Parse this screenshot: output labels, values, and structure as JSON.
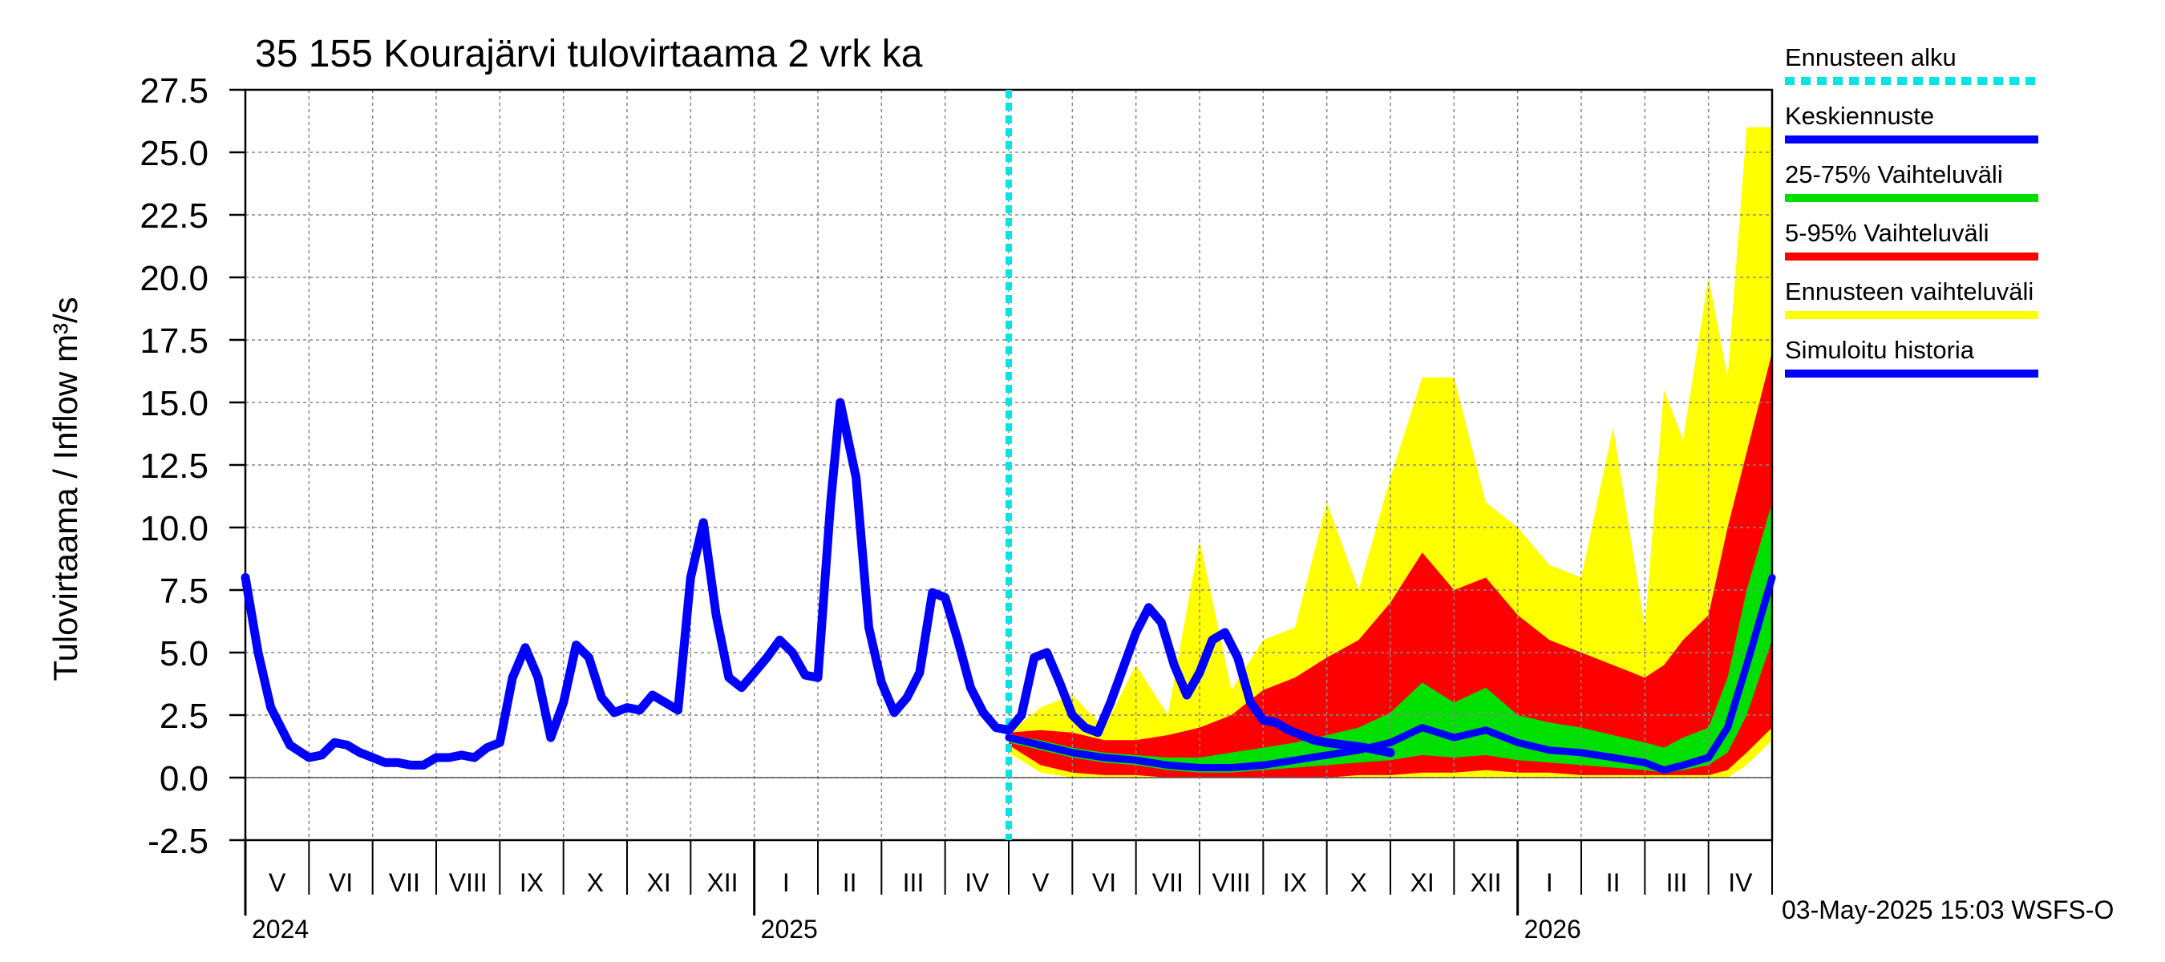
{
  "chart_data": {
    "type": "area",
    "title": "35 155 Kourajärvi tulovirtaama 2 vrk ka",
    "ylabel": "Tulovirtaama / Inflow    m³/s",
    "ylim": [
      -2.5,
      27.5
    ],
    "yticks": [
      "-2.5",
      "0.0",
      "2.5",
      "5.0",
      "7.5",
      "10.0",
      "12.5",
      "15.0",
      "17.5",
      "20.0",
      "22.5",
      "25.0",
      "27.5"
    ],
    "grid": true,
    "legend_position": "right",
    "x_months": [
      "V",
      "VI",
      "VII",
      "VIII",
      "IX",
      "X",
      "XI",
      "XII",
      "I",
      "II",
      "III",
      "IV",
      "V",
      "VI",
      "VII",
      "VIII",
      "IX",
      "X",
      "XI",
      "XII",
      "I",
      "II",
      "III",
      "IV"
    ],
    "x_years": [
      {
        "label": "2024",
        "month_index": 0
      },
      {
        "label": "2025",
        "month_index": 8
      },
      {
        "label": "2026",
        "month_index": 20
      }
    ],
    "forecast_start_month": 12,
    "legend": [
      {
        "label": "Ennusteen alku",
        "color": "#00e5e5",
        "style": "dotted"
      },
      {
        "label": "Keskiennuste",
        "color": "#0000ff",
        "style": "solid"
      },
      {
        "label": "25-75% Vaihteluväli",
        "color": "#00e000",
        "style": "solid"
      },
      {
        "label": "5-95% Vaihteluväli",
        "color": "#ff0000",
        "style": "solid"
      },
      {
        "label": "Ennusteen vaihteluväli",
        "color": "#ffff00",
        "style": "solid"
      },
      {
        "label": "Simuloitu historia",
        "color": "#0000ff",
        "style": "solid"
      }
    ],
    "history": {
      "name": "Simuloitu historia",
      "color": "#0000ff",
      "points": [
        [
          0.0,
          8.0
        ],
        [
          0.2,
          5.0
        ],
        [
          0.4,
          2.8
        ],
        [
          0.7,
          1.3
        ],
        [
          1.0,
          0.8
        ],
        [
          1.2,
          0.9
        ],
        [
          1.4,
          1.4
        ],
        [
          1.6,
          1.3
        ],
        [
          1.8,
          1.0
        ],
        [
          2.0,
          0.8
        ],
        [
          2.2,
          0.6
        ],
        [
          2.4,
          0.6
        ],
        [
          2.6,
          0.5
        ],
        [
          2.8,
          0.5
        ],
        [
          3.0,
          0.8
        ],
        [
          3.2,
          0.8
        ],
        [
          3.4,
          0.9
        ],
        [
          3.6,
          0.8
        ],
        [
          3.8,
          1.2
        ],
        [
          4.0,
          1.4
        ],
        [
          4.2,
          4.0
        ],
        [
          4.4,
          5.2
        ],
        [
          4.6,
          4.0
        ],
        [
          4.8,
          1.6
        ],
        [
          5.0,
          3.0
        ],
        [
          5.2,
          5.3
        ],
        [
          5.4,
          4.8
        ],
        [
          5.6,
          3.2
        ],
        [
          5.8,
          2.6
        ],
        [
          6.0,
          2.8
        ],
        [
          6.2,
          2.7
        ],
        [
          6.4,
          3.3
        ],
        [
          6.6,
          3.0
        ],
        [
          6.8,
          2.7
        ],
        [
          7.0,
          8.0
        ],
        [
          7.2,
          10.2
        ],
        [
          7.4,
          6.5
        ],
        [
          7.6,
          4.0
        ],
        [
          7.8,
          3.6
        ],
        [
          8.0,
          4.2
        ],
        [
          8.2,
          4.8
        ],
        [
          8.4,
          5.5
        ],
        [
          8.6,
          5.0
        ],
        [
          8.8,
          4.1
        ],
        [
          9.0,
          4.0
        ],
        [
          9.2,
          11.0
        ],
        [
          9.35,
          15.0
        ],
        [
          9.6,
          12.0
        ],
        [
          9.8,
          6.0
        ],
        [
          10.0,
          3.8
        ],
        [
          10.2,
          2.6
        ],
        [
          10.4,
          3.2
        ],
        [
          10.6,
          4.2
        ],
        [
          10.8,
          7.4
        ],
        [
          11.0,
          7.2
        ],
        [
          11.2,
          5.5
        ],
        [
          11.4,
          3.6
        ],
        [
          11.6,
          2.6
        ],
        [
          11.8,
          2.0
        ],
        [
          12.0,
          1.9
        ],
        [
          12.2,
          2.5
        ],
        [
          12.4,
          4.8
        ],
        [
          12.6,
          5.0
        ],
        [
          12.8,
          3.8
        ],
        [
          13.0,
          2.5
        ],
        [
          13.2,
          2.0
        ],
        [
          13.4,
          1.8
        ],
        [
          13.6,
          3.0
        ],
        [
          13.8,
          4.4
        ],
        [
          14.0,
          5.8
        ],
        [
          14.2,
          6.8
        ],
        [
          14.4,
          6.2
        ],
        [
          14.6,
          4.5
        ],
        [
          14.8,
          3.3
        ],
        [
          15.0,
          4.2
        ],
        [
          15.2,
          5.5
        ],
        [
          15.4,
          5.8
        ],
        [
          15.6,
          4.8
        ],
        [
          15.8,
          3.0
        ],
        [
          16.0,
          2.3
        ],
        [
          16.2,
          2.2
        ],
        [
          16.4,
          1.9
        ],
        [
          16.6,
          1.7
        ],
        [
          16.8,
          1.5
        ],
        [
          17.0,
          1.4
        ],
        [
          17.3,
          1.3
        ],
        [
          17.6,
          1.2
        ],
        [
          18.0,
          1.0
        ]
      ]
    },
    "forecast": {
      "x": [
        12.0,
        12.5,
        13.0,
        13.5,
        14.0,
        14.5,
        15.0,
        15.5,
        16.0,
        16.5,
        17.0,
        17.5,
        18.0,
        18.5,
        19.0,
        19.5,
        20.0,
        20.5,
        21.0,
        21.5,
        22.0,
        22.3,
        22.6,
        23.0,
        23.3,
        23.6,
        24.0
      ],
      "median": [
        1.6,
        1.3,
        1.0,
        0.8,
        0.7,
        0.5,
        0.4,
        0.4,
        0.5,
        0.7,
        0.9,
        1.1,
        1.4,
        2.0,
        1.6,
        1.9,
        1.4,
        1.1,
        1.0,
        0.8,
        0.6,
        0.3,
        0.5,
        0.8,
        2.0,
        4.5,
        8.0
      ],
      "p25": [
        1.4,
        1.1,
        0.8,
        0.6,
        0.5,
        0.3,
        0.2,
        0.2,
        0.3,
        0.4,
        0.5,
        0.6,
        0.7,
        0.9,
        0.8,
        0.9,
        0.7,
        0.6,
        0.5,
        0.4,
        0.3,
        0.2,
        0.3,
        0.5,
        1.0,
        2.5,
        5.5
      ],
      "p75": [
        1.7,
        1.5,
        1.2,
        1.0,
        0.9,
        0.8,
        0.8,
        1.0,
        1.2,
        1.4,
        1.7,
        2.0,
        2.6,
        3.8,
        3.0,
        3.6,
        2.5,
        2.2,
        2.0,
        1.7,
        1.4,
        1.2,
        1.6,
        2.0,
        4.0,
        7.5,
        11.0
      ],
      "p5": [
        1.3,
        0.5,
        0.2,
        0.1,
        0.1,
        0.0,
        0.0,
        0.0,
        0.0,
        0.0,
        0.0,
        0.1,
        0.1,
        0.2,
        0.2,
        0.3,
        0.2,
        0.2,
        0.1,
        0.1,
        0.1,
        0.1,
        0.1,
        0.1,
        0.3,
        1.0,
        2.0
      ],
      "p95": [
        1.8,
        1.9,
        1.8,
        1.5,
        1.5,
        1.7,
        2.0,
        2.5,
        3.5,
        4.0,
        4.8,
        5.5,
        7.0,
        9.0,
        7.5,
        8.0,
        6.5,
        5.5,
        5.0,
        4.5,
        4.0,
        4.5,
        5.5,
        6.5,
        10.0,
        13.0,
        17.0
      ],
      "min": [
        1.0,
        0.2,
        0.0,
        0.0,
        0.0,
        0.0,
        0.0,
        0.0,
        0.0,
        0.0,
        0.0,
        0.0,
        0.0,
        0.0,
        0.0,
        0.0,
        0.0,
        0.0,
        0.0,
        0.0,
        0.0,
        0.0,
        0.0,
        0.0,
        0.0,
        0.5,
        1.5
      ],
      "max": [
        1.8,
        2.8,
        3.3,
        2.0,
        4.5,
        2.5,
        9.5,
        3.5,
        5.5,
        6.0,
        11.0,
        7.5,
        12.0,
        16.0,
        16.0,
        11.0,
        10.0,
        8.5,
        8.0,
        14.0,
        6.0,
        15.5,
        13.5,
        20.0,
        16.0,
        26.0,
        26.0
      ]
    },
    "footer": "03-May-2025 15:03 WSFS-O"
  }
}
